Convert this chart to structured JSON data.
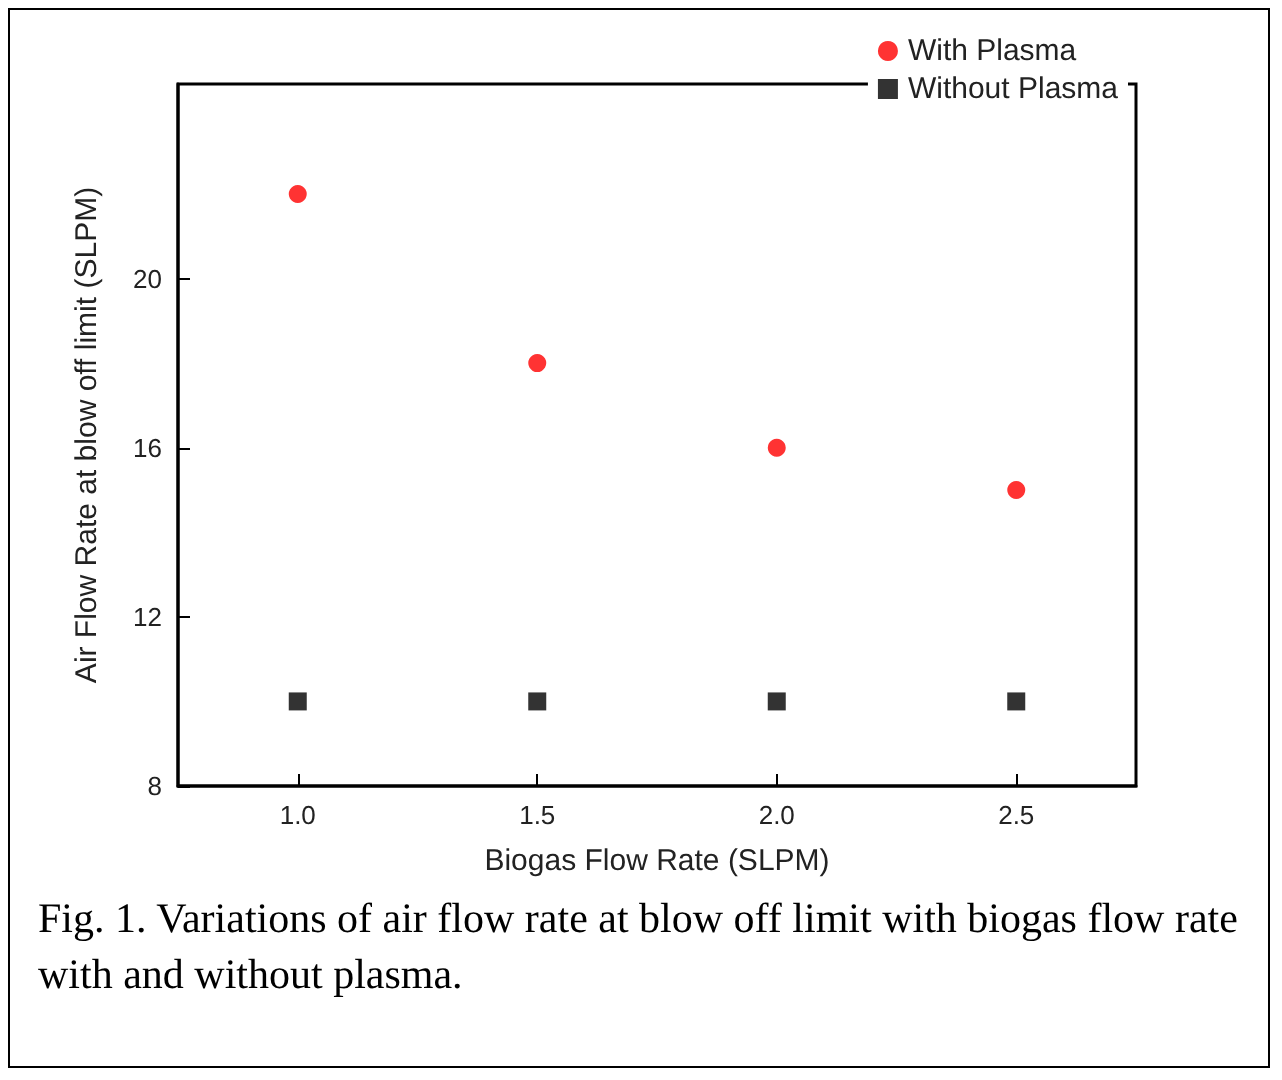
{
  "chart_data": {
    "type": "scatter",
    "xlabel": "Biogas Flow Rate (SLPM)",
    "ylabel": "Air Flow Rate at blow off limit (SLPM)",
    "x": [
      1.0,
      1.5,
      2.0,
      2.5
    ],
    "series": [
      {
        "name": "With Plasma",
        "color": "#ff0000",
        "marker": "circle",
        "values": [
          22,
          18,
          16,
          15
        ]
      },
      {
        "name": "Without Plasma",
        "color": "#000000",
        "marker": "square",
        "values": [
          10,
          10,
          10,
          10
        ]
      }
    ],
    "xlim": [
      0.75,
      2.75
    ],
    "xticks": [
      {
        "value": 1,
        "label": "1.0"
      },
      {
        "value": 1.5,
        "label": "1.5"
      },
      {
        "value": 2,
        "label": "2.0"
      },
      {
        "value": 2.5,
        "label": "2.5"
      }
    ],
    "ylim": [
      8,
      24.6
    ],
    "yticks": [
      8,
      12,
      16,
      20
    ],
    "grid": false,
    "legend": "top right",
    "annotations": [
      "Fig. 1. Variations of air flow rate at blow off limit with biogas flow rate with and without plasma."
    ]
  }
}
